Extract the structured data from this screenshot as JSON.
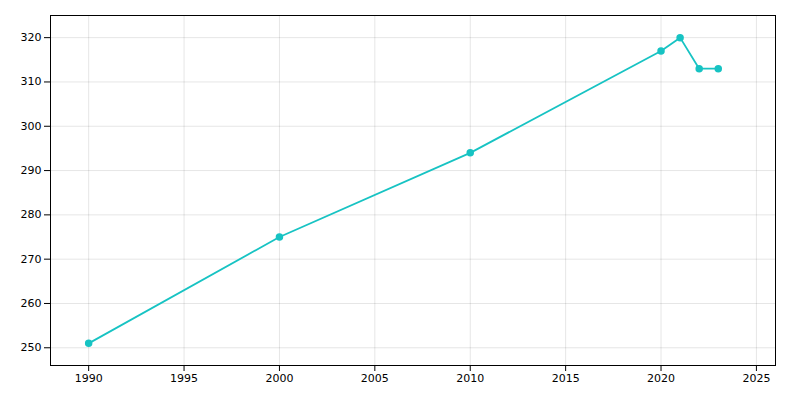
{
  "chart_data": {
    "type": "line",
    "x": [
      1990,
      2000,
      2010,
      2020,
      2021,
      2022,
      2023
    ],
    "values": [
      251,
      275,
      294,
      317,
      320,
      313,
      313
    ],
    "color": "#17C3C3",
    "marker": "circle",
    "xlim": [
      1988,
      2026
    ],
    "ylim": [
      246,
      325
    ],
    "xticks": [
      1990,
      1995,
      2000,
      2005,
      2010,
      2015,
      2020,
      2025
    ],
    "yticks": [
      250,
      260,
      270,
      280,
      290,
      300,
      310,
      320
    ],
    "grid": true
  }
}
